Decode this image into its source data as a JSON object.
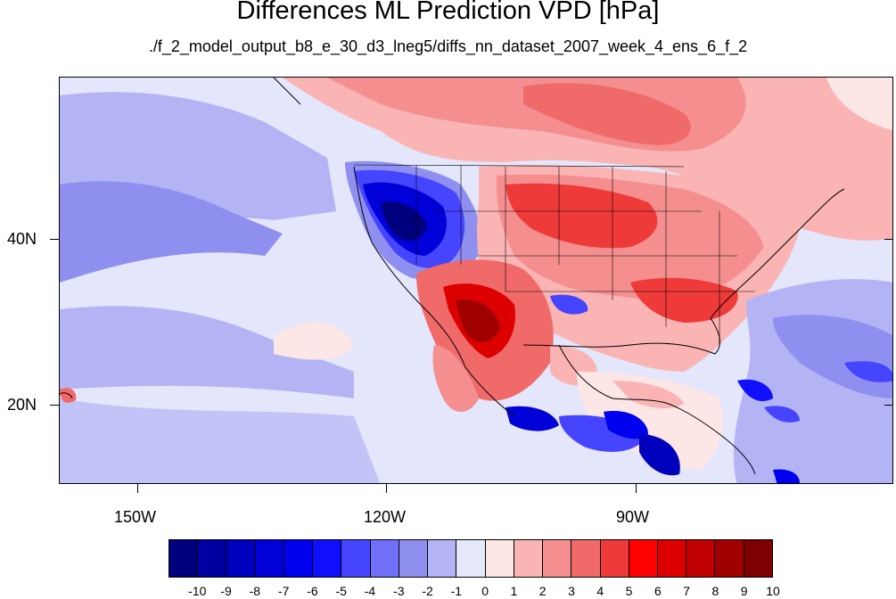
{
  "title": "Differences ML Prediction VPD [hPa]",
  "subtitle": "./f_2_model_output_b8_e_30_d3_lneg5/diffs_nn_dataset_2007_week_4_ens_6_f_2",
  "lat_labels": [
    "40N",
    "20N"
  ],
  "lon_labels": [
    "150W",
    "120W",
    "90W"
  ],
  "colorbar": {
    "labels": [
      "-10",
      "-9",
      "-8",
      "-7",
      "-6",
      "-5",
      "-4",
      "-3",
      "-2",
      "-1",
      "0",
      "1",
      "2",
      "3",
      "4",
      "5",
      "6",
      "7",
      "8",
      "9",
      "10"
    ],
    "colors": [
      "#00007f",
      "#0000a0",
      "#0000bd",
      "#0000d9",
      "#0000f0",
      "#1010ff",
      "#4545ff",
      "#6f6ff7",
      "#8f8ff0",
      "#b4b4f5",
      "#e6e8fb",
      "#fde6e6",
      "#fab4b4",
      "#f58f8f",
      "#f06a6a",
      "#ef3a3a",
      "#ff0000",
      "#dd0000",
      "#c00000",
      "#a00000",
      "#7f0000"
    ]
  },
  "palette": {
    "ocean_base": "#e4e6fb",
    "light_blue": "#b4b4f5",
    "mid_blue": "#8f8ff0",
    "deep_blue": "#0000c8",
    "light_red": "#fab4b4",
    "mid_red": "#f06a6a",
    "deep_red": "#b00000",
    "pale_red": "#fde6e6"
  }
}
